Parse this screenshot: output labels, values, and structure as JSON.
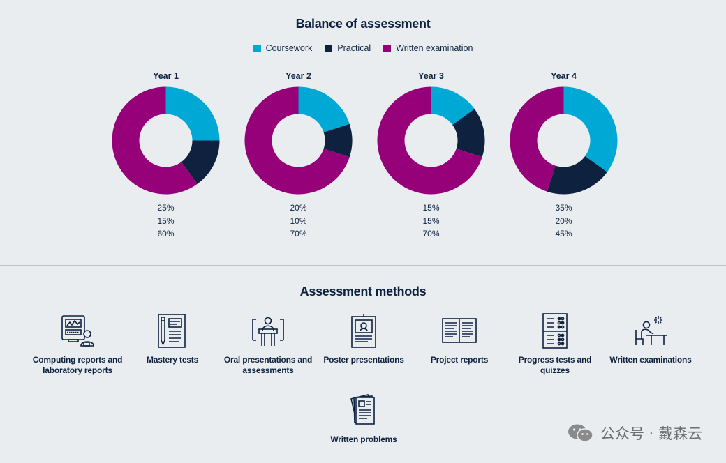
{
  "title": "Balance of assessment",
  "legend": [
    {
      "label": "Coursework",
      "color": "#00a8d6"
    },
    {
      "label": "Practical",
      "color": "#0e2240"
    },
    {
      "label": "Written examination",
      "color": "#960078"
    }
  ],
  "chart_data": {
    "type": "pie",
    "variant": "donut",
    "title": "Balance of assessment",
    "series_names": [
      "Coursework",
      "Practical",
      "Written examination"
    ],
    "colors": [
      "#00a8d6",
      "#0e2240",
      "#960078"
    ],
    "charts": [
      {
        "title": "Year 1",
        "values": [
          25,
          15,
          60
        ],
        "labels": [
          "25%",
          "15%",
          "60%"
        ]
      },
      {
        "title": "Year 2",
        "values": [
          20,
          10,
          70
        ],
        "labels": [
          "20%",
          "10%",
          "70%"
        ]
      },
      {
        "title": "Year 3",
        "values": [
          15,
          15,
          70
        ],
        "labels": [
          "15%",
          "15%",
          "70%"
        ]
      },
      {
        "title": "Year 4",
        "values": [
          35,
          20,
          45
        ],
        "labels": [
          "35%",
          "20%",
          "45%"
        ]
      }
    ]
  },
  "methods": {
    "title": "Assessment methods",
    "items": [
      {
        "label": "Computing reports and laboratory reports",
        "icon": "computer-user-icon"
      },
      {
        "label": "Mastery tests",
        "icon": "test-paper-icon"
      },
      {
        "label": "Oral presentations and assessments",
        "icon": "lectern-icon"
      },
      {
        "label": "Poster presentations",
        "icon": "poster-icon"
      },
      {
        "label": "Project reports",
        "icon": "open-report-icon"
      },
      {
        "label": "Progress tests and quizzes",
        "icon": "checklist-icon"
      },
      {
        "label": "Written examinations",
        "icon": "exam-desk-icon"
      },
      {
        "label": "Written problems",
        "icon": "paper-stack-icon"
      }
    ]
  },
  "watermark": {
    "text": "公众号 · 戴森云",
    "icon": "wechat-icon"
  }
}
